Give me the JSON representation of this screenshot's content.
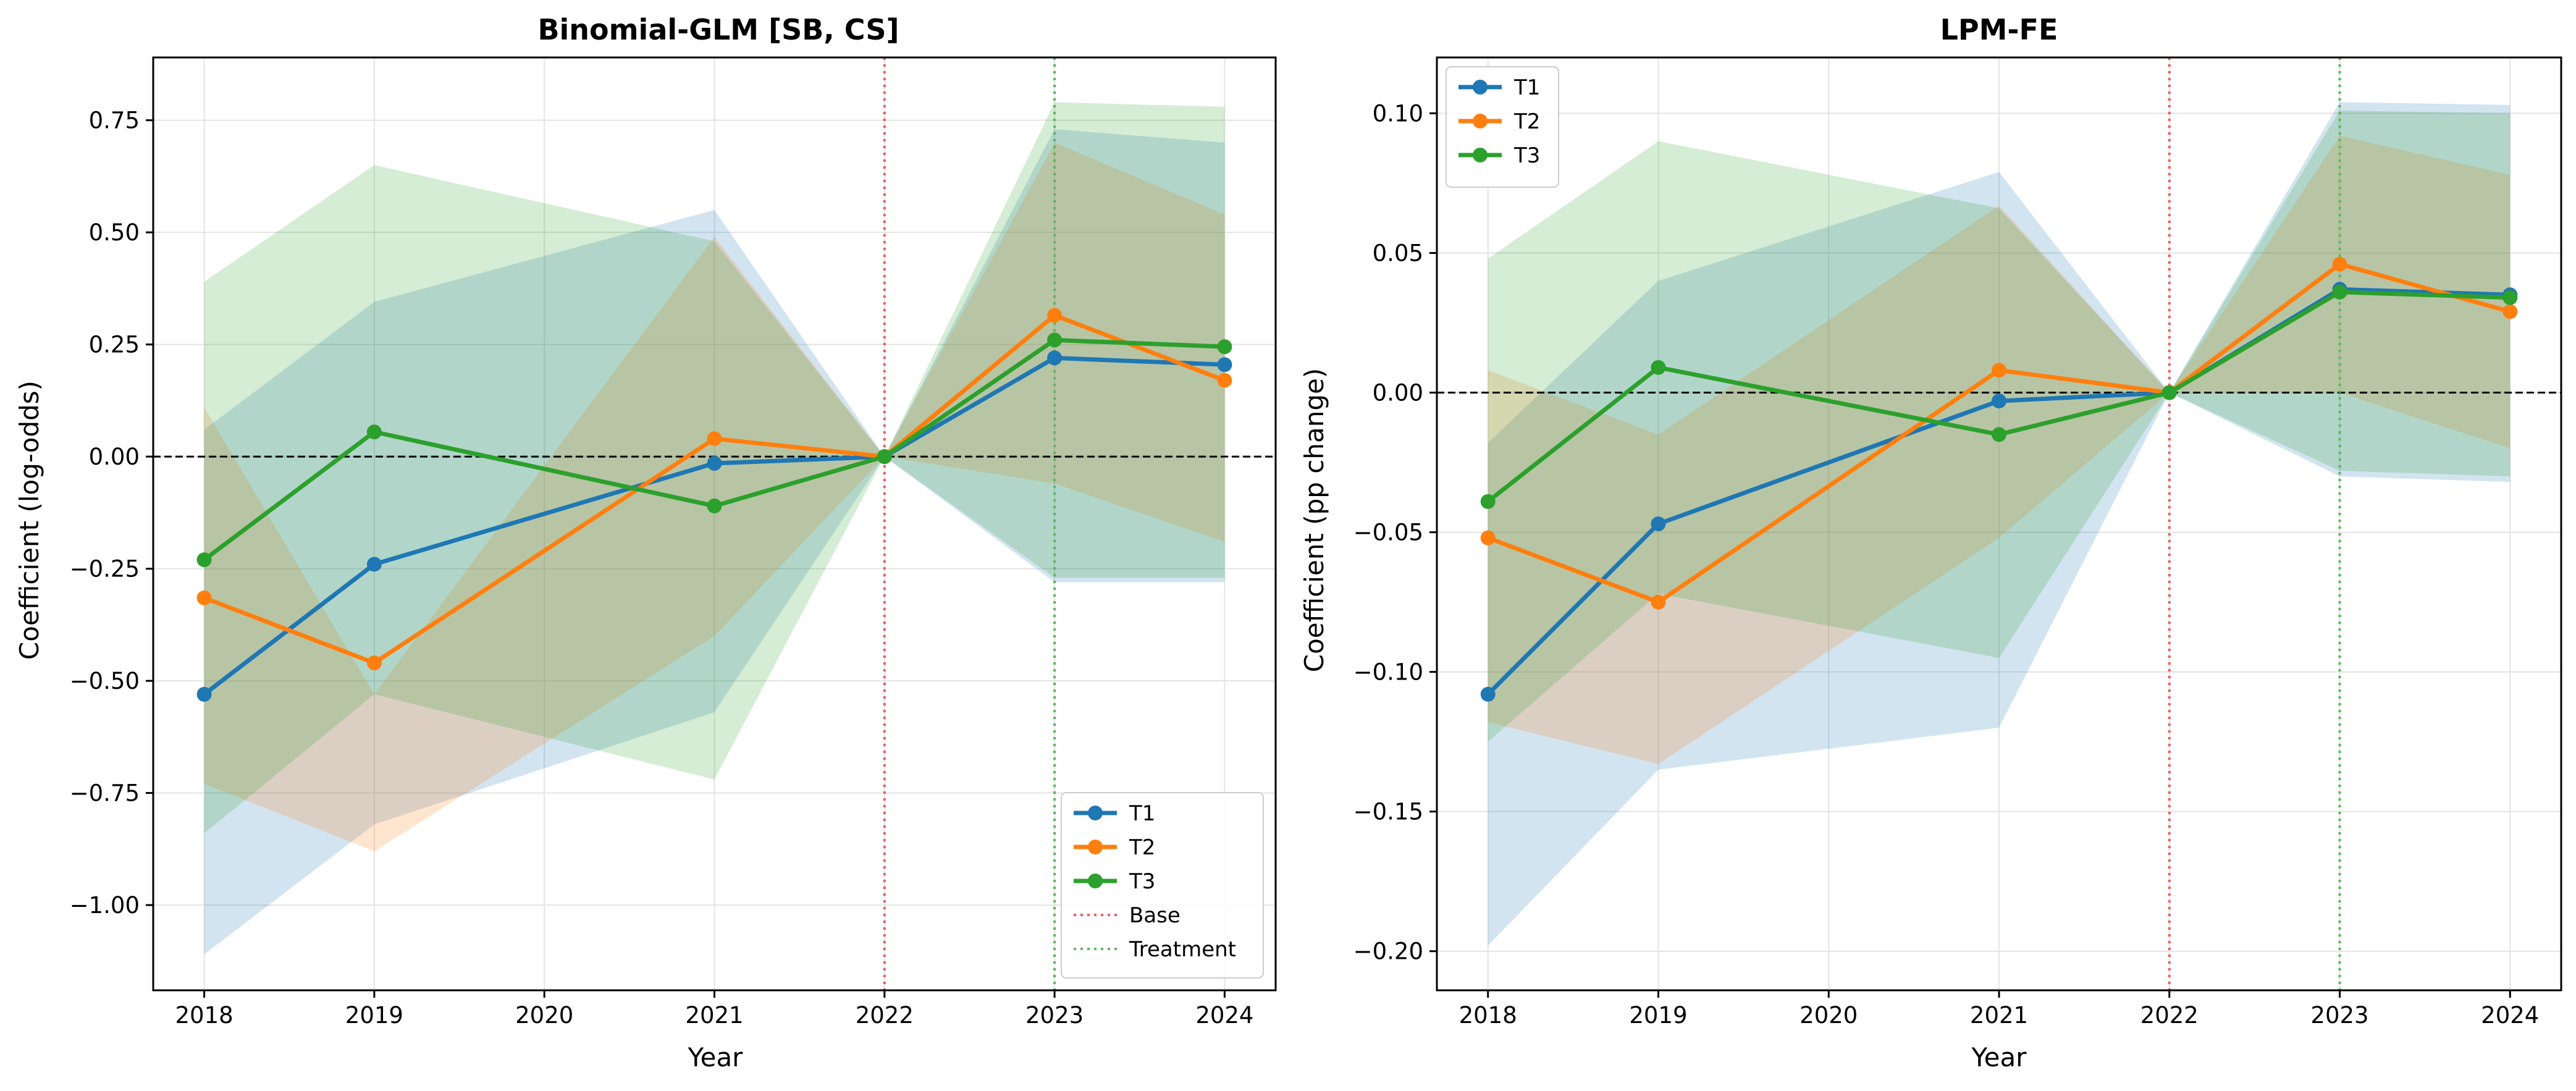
{
  "chart_data": [
    {
      "type": "line",
      "title": "Binomial-GLM [SB, CS]",
      "xlabel": "Year",
      "ylabel": "Coefficient (log-odds)",
      "x": [
        2018,
        2019,
        2021,
        2022,
        2023,
        2024
      ],
      "xticks": [
        2018,
        2019,
        2020,
        2021,
        2022,
        2023,
        2024
      ],
      "xlim": [
        2017.7,
        2024.3
      ],
      "ylim": [
        -1.19,
        0.89
      ],
      "yticks": [
        0.75,
        0.5,
        0.25,
        0.0,
        -0.25,
        -0.5,
        -0.75,
        -1.0
      ],
      "ytick_labels": [
        "0.75",
        "0.50",
        "0.25",
        "0.00",
        "−0.25",
        "−0.50",
        "−0.75",
        "−1.00"
      ],
      "grid": true,
      "zero_line": true,
      "legend_location": "lower-right",
      "series": [
        {
          "name": "T1",
          "color": "#1f77b4",
          "values": [
            -0.53,
            -0.24,
            -0.015,
            0.0,
            0.22,
            0.205
          ],
          "ci_lower": [
            -1.11,
            -0.82,
            -0.57,
            0.0,
            -0.28,
            -0.28
          ],
          "ci_upper": [
            0.06,
            0.345,
            0.55,
            0.0,
            0.73,
            0.7
          ]
        },
        {
          "name": "T2",
          "color": "#ff7f0e",
          "values": [
            -0.315,
            -0.46,
            0.04,
            0.0,
            0.315,
            0.17
          ],
          "ci_lower": [
            -0.73,
            -0.88,
            -0.4,
            0.0,
            -0.06,
            -0.19
          ],
          "ci_upper": [
            0.11,
            -0.53,
            0.49,
            0.0,
            0.7,
            0.54
          ]
        },
        {
          "name": "T3",
          "color": "#2ca02c",
          "values": [
            -0.23,
            0.055,
            -0.11,
            0.0,
            0.26,
            0.245
          ],
          "ci_lower": [
            -0.84,
            -0.53,
            -0.72,
            0.0,
            -0.27,
            -0.27
          ],
          "ci_upper": [
            0.39,
            0.65,
            0.48,
            0.0,
            0.79,
            0.78
          ]
        }
      ],
      "vlines": [
        {
          "name": "Base",
          "x": 2022,
          "color": "#f15b5b"
        },
        {
          "name": "Treatment",
          "x": 2023,
          "color": "#5cb85c"
        }
      ]
    },
    {
      "type": "line",
      "title": "LPM-FE",
      "xlabel": "Year",
      "ylabel": "Coefficient (pp change)",
      "x": [
        2018,
        2019,
        2021,
        2022,
        2023,
        2024
      ],
      "xticks": [
        2018,
        2019,
        2020,
        2021,
        2022,
        2023,
        2024
      ],
      "xlim": [
        2017.7,
        2024.3
      ],
      "ylim": [
        -0.214,
        0.12
      ],
      "yticks": [
        0.1,
        0.05,
        0.0,
        -0.05,
        -0.1,
        -0.15,
        -0.2
      ],
      "ytick_labels": [
        "0.10",
        "0.05",
        "0.00",
        "−0.05",
        "−0.10",
        "−0.15",
        "−0.20"
      ],
      "grid": true,
      "zero_line": true,
      "legend_location": "upper-left",
      "series": [
        {
          "name": "T1",
          "color": "#1f77b4",
          "values": [
            -0.108,
            -0.047,
            -0.003,
            0.0,
            0.037,
            0.035
          ],
          "ci_lower": [
            -0.198,
            -0.135,
            -0.12,
            0.0,
            -0.03,
            -0.032
          ],
          "ci_upper": [
            -0.018,
            0.04,
            0.079,
            0.0,
            0.104,
            0.103
          ]
        },
        {
          "name": "T2",
          "color": "#ff7f0e",
          "values": [
            -0.052,
            -0.075,
            0.008,
            0.0,
            0.046,
            0.029
          ],
          "ci_lower": [
            -0.118,
            -0.133,
            -0.052,
            0.0,
            0.0,
            -0.02
          ],
          "ci_upper": [
            0.008,
            -0.015,
            0.067,
            0.0,
            0.092,
            0.078
          ]
        },
        {
          "name": "T3",
          "color": "#2ca02c",
          "values": [
            -0.039,
            0.009,
            -0.015,
            0.0,
            0.036,
            0.034
          ],
          "ci_lower": [
            -0.125,
            -0.072,
            -0.095,
            0.0,
            -0.028,
            -0.03
          ],
          "ci_upper": [
            0.048,
            0.09,
            0.066,
            0.0,
            0.101,
            0.1
          ]
        }
      ],
      "vlines": [
        {
          "x": 2022,
          "color": "#f15b5b"
        },
        {
          "x": 2023,
          "color": "#5cb85c"
        }
      ]
    }
  ]
}
